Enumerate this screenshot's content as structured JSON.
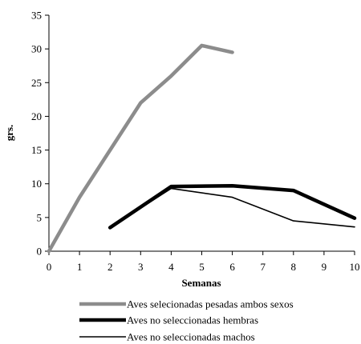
{
  "chart_data": {
    "type": "line",
    "xlabel": "Semanas",
    "ylabel": "grs.",
    "xlim": [
      0,
      10
    ],
    "ylim": [
      0,
      35
    ],
    "x_ticks": [
      0,
      1,
      2,
      3,
      4,
      5,
      6,
      7,
      8,
      9,
      10
    ],
    "y_ticks": [
      0,
      5,
      10,
      15,
      20,
      25,
      30,
      35
    ],
    "grid": false,
    "legend_position": "bottom",
    "series": [
      {
        "name": "Aves selecionadas pesadas ambos sexos",
        "color": "#8c8c8c",
        "style": "thick",
        "x": [
          0,
          1,
          2,
          3,
          4,
          5,
          6
        ],
        "y": [
          0,
          8,
          15,
          22,
          26,
          30.5,
          29.5
        ]
      },
      {
        "name": "Aves no seleccionadas hembras",
        "color": "#000000",
        "style": "thick",
        "x": [
          2,
          4,
          6,
          8,
          10
        ],
        "y": [
          3.5,
          9.6,
          9.7,
          9,
          4.9
        ]
      },
      {
        "name": "Aves no seleccionadas machos",
        "color": "#000000",
        "style": "thin",
        "x": [
          2,
          4,
          6,
          8,
          10
        ],
        "y": [
          3.5,
          9.3,
          8,
          4.5,
          3.6
        ]
      }
    ]
  }
}
